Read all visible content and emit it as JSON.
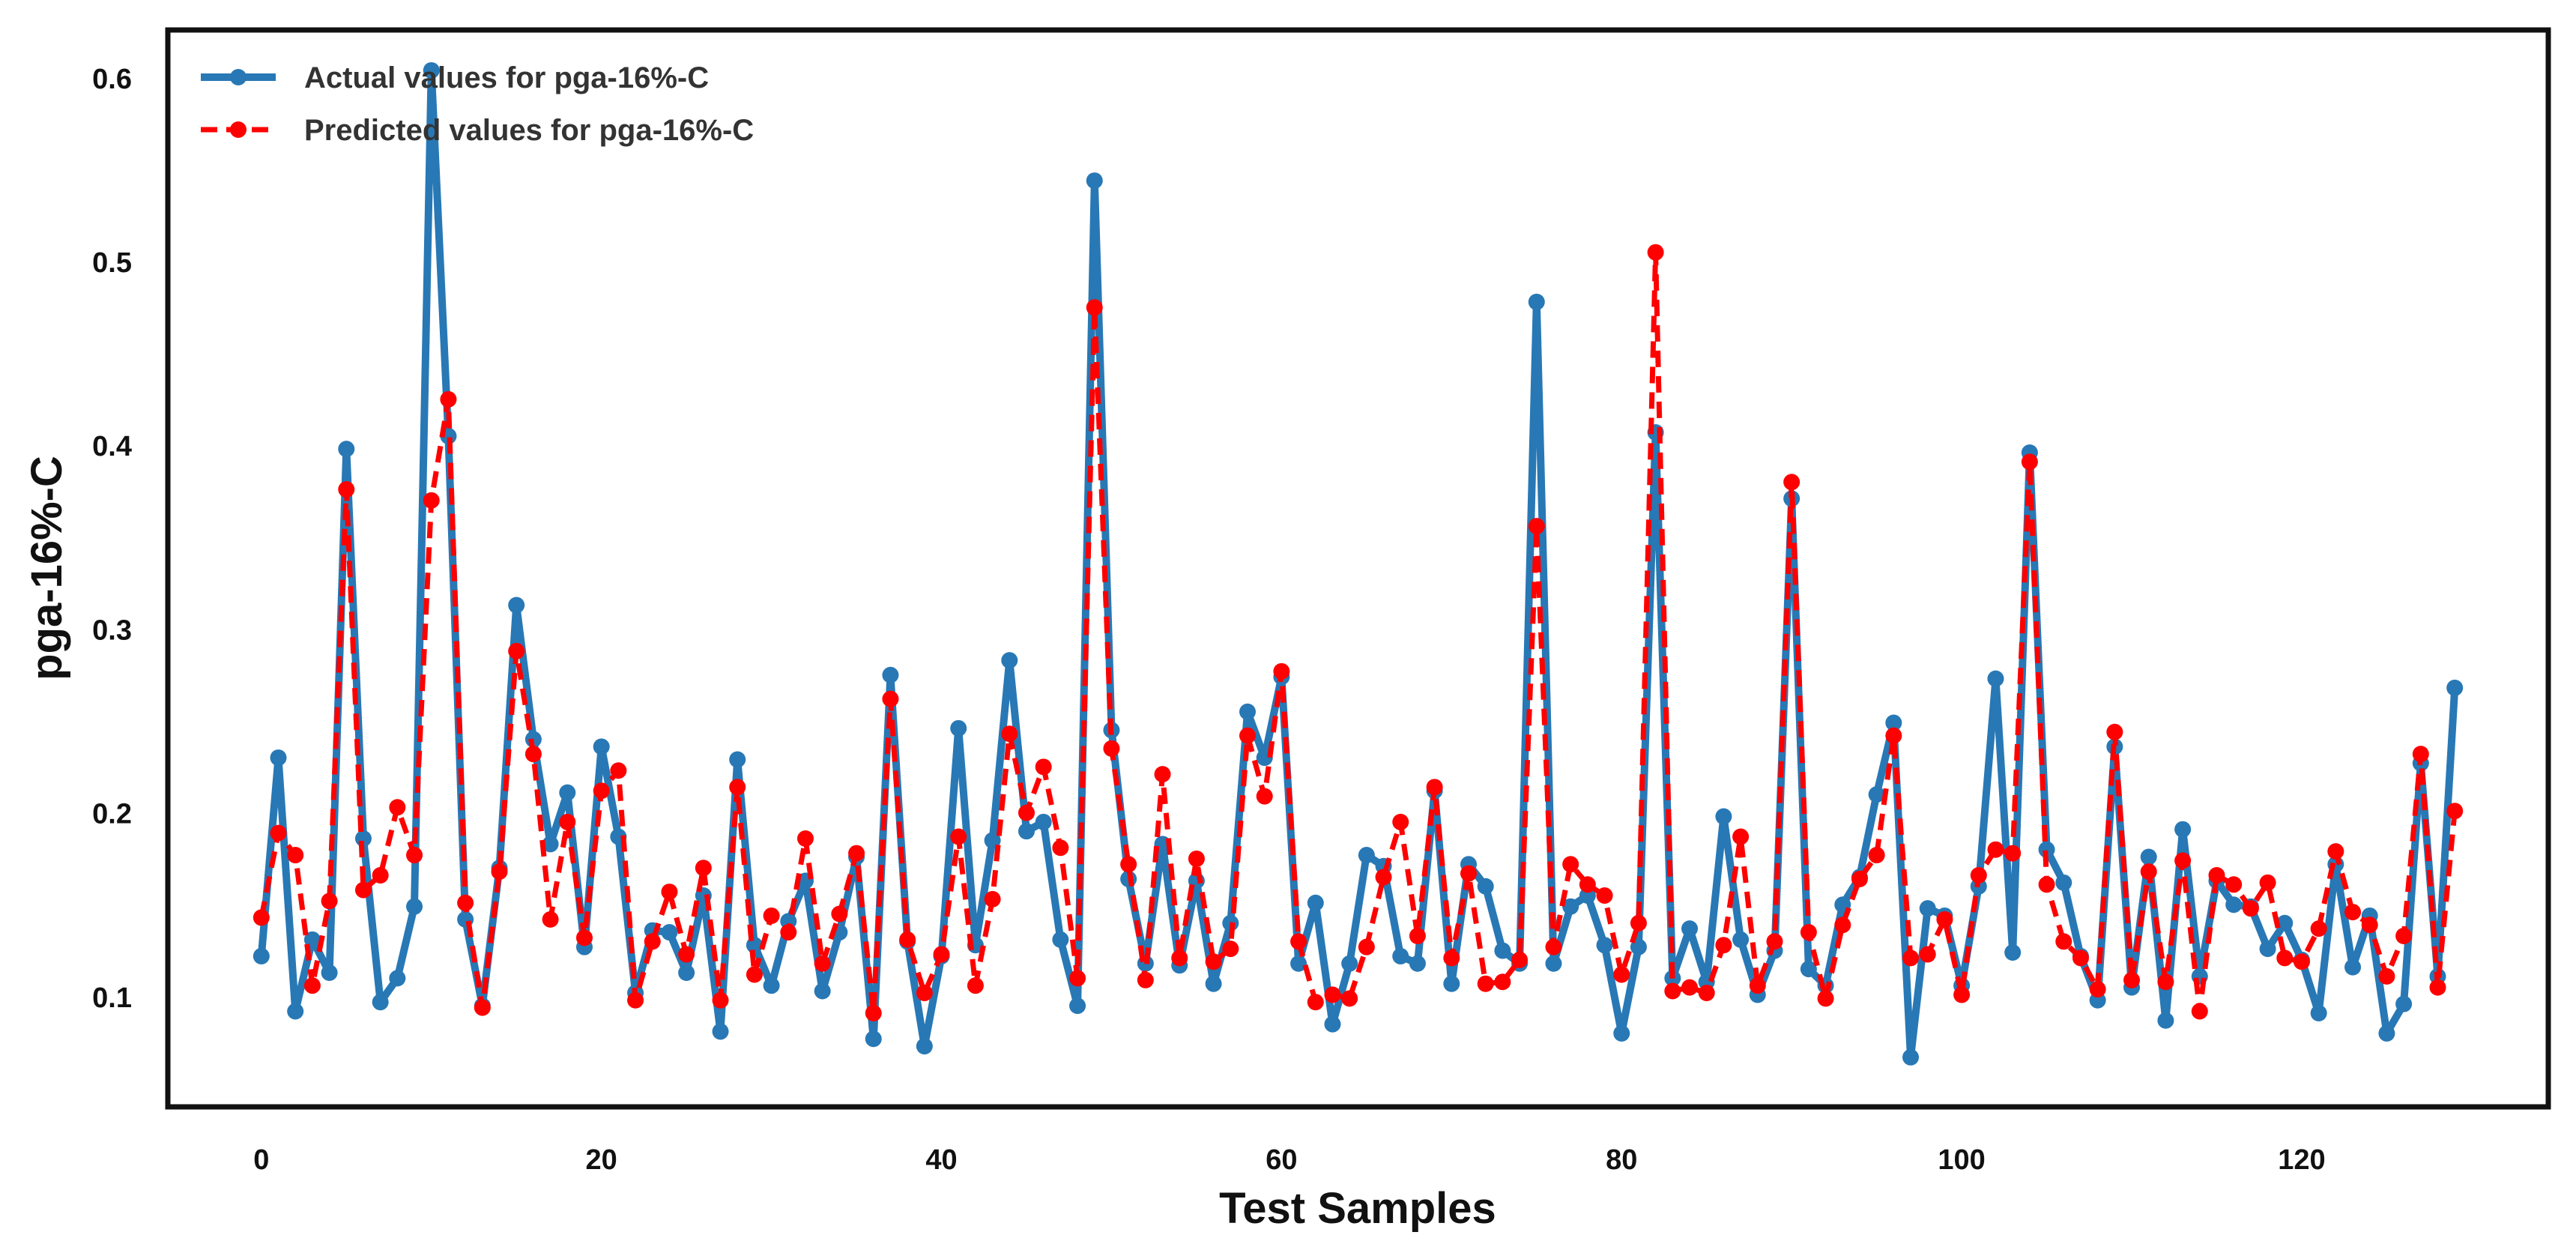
{
  "chart_data": {
    "type": "line",
    "title": "",
    "xlabel": "Test Samples",
    "ylabel": "pga-16%-C",
    "xlim": [
      -5.5,
      134.5
    ],
    "ylim": [
      0.04,
      0.626
    ],
    "x_ticks": [
      0,
      20,
      40,
      60,
      80,
      100,
      120
    ],
    "x_tick_labels": [
      "0",
      "20",
      "40",
      "60",
      "80",
      "100",
      "120"
    ],
    "y_ticks": [
      0.1,
      0.2,
      0.3,
      0.4,
      0.5,
      0.6
    ],
    "y_tick_labels": [
      "0.1",
      "0.2",
      "0.3",
      "0.4",
      "0.5",
      "0.6"
    ],
    "grid": false,
    "legend_position": "top-left",
    "series": [
      {
        "name": "Actual values for pga-16%-C",
        "color": "#2878b5",
        "style": "solid",
        "values": [
          0.122,
          0.23,
          0.092,
          0.131,
          0.113,
          0.398,
          0.186,
          0.097,
          0.11,
          0.149,
          0.604,
          0.405,
          0.142,
          0.095,
          0.17,
          0.313,
          0.24,
          0.183,
          0.211,
          0.127,
          0.236,
          0.187,
          0.102,
          0.136,
          0.135,
          0.113,
          0.155,
          0.081,
          0.229,
          0.128,
          0.106,
          0.141,
          0.163,
          0.103,
          0.135,
          0.176,
          0.077,
          0.275,
          0.13,
          0.073,
          0.122,
          0.246,
          0.128,
          0.185,
          0.283,
          0.19,
          0.195,
          0.131,
          0.095,
          0.544,
          0.245,
          0.164,
          0.118,
          0.183,
          0.117,
          0.163,
          0.107,
          0.14,
          0.255,
          0.23,
          0.274,
          0.118,
          0.151,
          0.085,
          0.118,
          0.177,
          0.171,
          0.122,
          0.118,
          0.212,
          0.107,
          0.172,
          0.16,
          0.125,
          0.118,
          0.478,
          0.118,
          0.149,
          0.155,
          0.128,
          0.08,
          0.127,
          0.407,
          0.11,
          0.137,
          0.108,
          0.198,
          0.131,
          0.101,
          0.125,
          0.371,
          0.115,
          0.106,
          0.15,
          0.165,
          0.21,
          0.249,
          0.067,
          0.148,
          0.144,
          0.106,
          0.16,
          0.273,
          0.124,
          0.396,
          0.18,
          0.162,
          0.122,
          0.098,
          0.236,
          0.105,
          0.176,
          0.087,
          0.191,
          0.111,
          0.163,
          0.15,
          0.149,
          0.126,
          0.14,
          0.12,
          0.091,
          0.172,
          0.116,
          0.144,
          0.08,
          0.096,
          0.227,
          0.111,
          0.268
        ]
      },
      {
        "name": "Predicted values for pga-16%-C",
        "color": "#ff0000",
        "style": "dashed",
        "values": [
          0.143,
          0.189,
          0.177,
          0.106,
          0.152,
          0.376,
          0.158,
          0.166,
          0.203,
          0.177,
          0.37,
          0.425,
          0.151,
          0.094,
          0.168,
          0.288,
          0.232,
          0.142,
          0.195,
          0.132,
          0.212,
          0.223,
          0.098,
          0.13,
          0.157,
          0.123,
          0.17,
          0.098,
          0.214,
          0.112,
          0.144,
          0.135,
          0.186,
          0.118,
          0.145,
          0.178,
          0.091,
          0.262,
          0.131,
          0.102,
          0.123,
          0.187,
          0.106,
          0.153,
          0.243,
          0.2,
          0.225,
          0.181,
          0.11,
          0.475,
          0.235,
          0.172,
          0.109,
          0.221,
          0.121,
          0.175,
          0.119,
          0.126,
          0.242,
          0.209,
          0.277,
          0.13,
          0.097,
          0.101,
          0.099,
          0.127,
          0.165,
          0.195,
          0.133,
          0.214,
          0.121,
          0.167,
          0.107,
          0.108,
          0.12,
          0.356,
          0.127,
          0.172,
          0.161,
          0.155,
          0.112,
          0.14,
          0.505,
          0.103,
          0.105,
          0.102,
          0.128,
          0.187,
          0.106,
          0.13,
          0.38,
          0.135,
          0.099,
          0.139,
          0.164,
          0.177,
          0.242,
          0.121,
          0.123,
          0.142,
          0.101,
          0.166,
          0.18,
          0.178,
          0.391,
          0.161,
          0.13,
          0.121,
          0.104,
          0.244,
          0.109,
          0.168,
          0.108,
          0.174,
          0.092,
          0.166,
          0.161,
          0.148,
          0.162,
          0.121,
          0.119,
          0.137,
          0.179,
          0.146,
          0.139,
          0.111,
          0.133,
          0.232,
          0.105,
          0.201
        ]
      }
    ]
  }
}
